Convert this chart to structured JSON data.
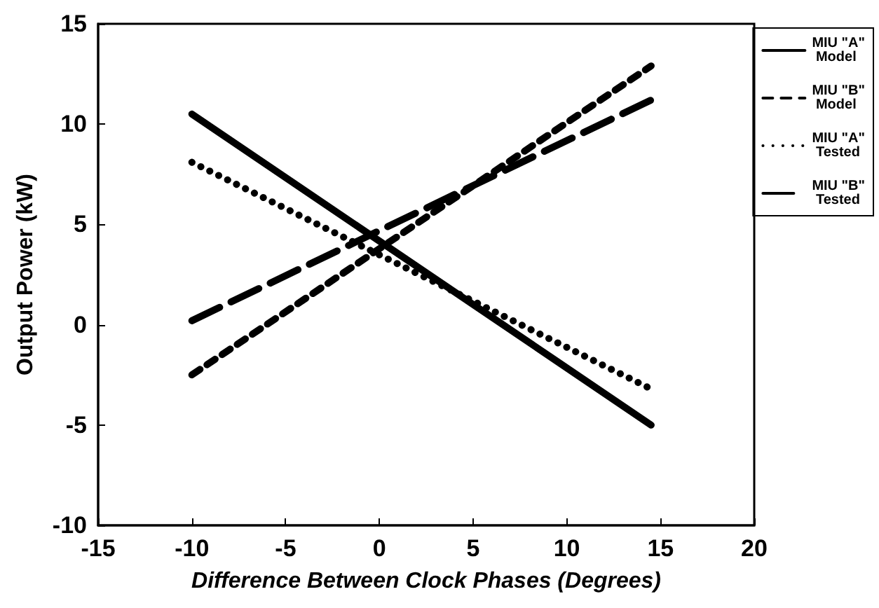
{
  "chart_data": {
    "type": "line",
    "xlabel": "Difference Between Clock Phases (Degrees)",
    "ylabel": "Output Power (kW)",
    "x": [
      -10,
      14.5
    ],
    "series": [
      {
        "name": "MIU \"A\" Model",
        "color": "#000000",
        "line_style": "solid",
        "values": [
          10.5,
          -5.0
        ]
      },
      {
        "name": "MIU \"B\" Model",
        "color": "#000000",
        "line_style": "dashed",
        "values": [
          -2.5,
          12.9
        ]
      },
      {
        "name": "MIU \"A\" Tested",
        "color": "#000000",
        "line_style": "dotted",
        "values": [
          8.1,
          -3.2
        ]
      },
      {
        "name": "MIU \"B\" Tested",
        "color": "#000000",
        "line_style": "longdash",
        "values": [
          0.2,
          11.2
        ]
      }
    ],
    "xlim": [
      -15,
      20
    ],
    "xticks": [
      -15,
      -10,
      -5,
      0,
      5,
      10,
      15,
      20
    ],
    "ylim": [
      -10,
      15
    ],
    "yticks": [
      -10,
      -5,
      0,
      5,
      10,
      15
    ],
    "grid": false,
    "legend": "right",
    "marker": "none"
  }
}
